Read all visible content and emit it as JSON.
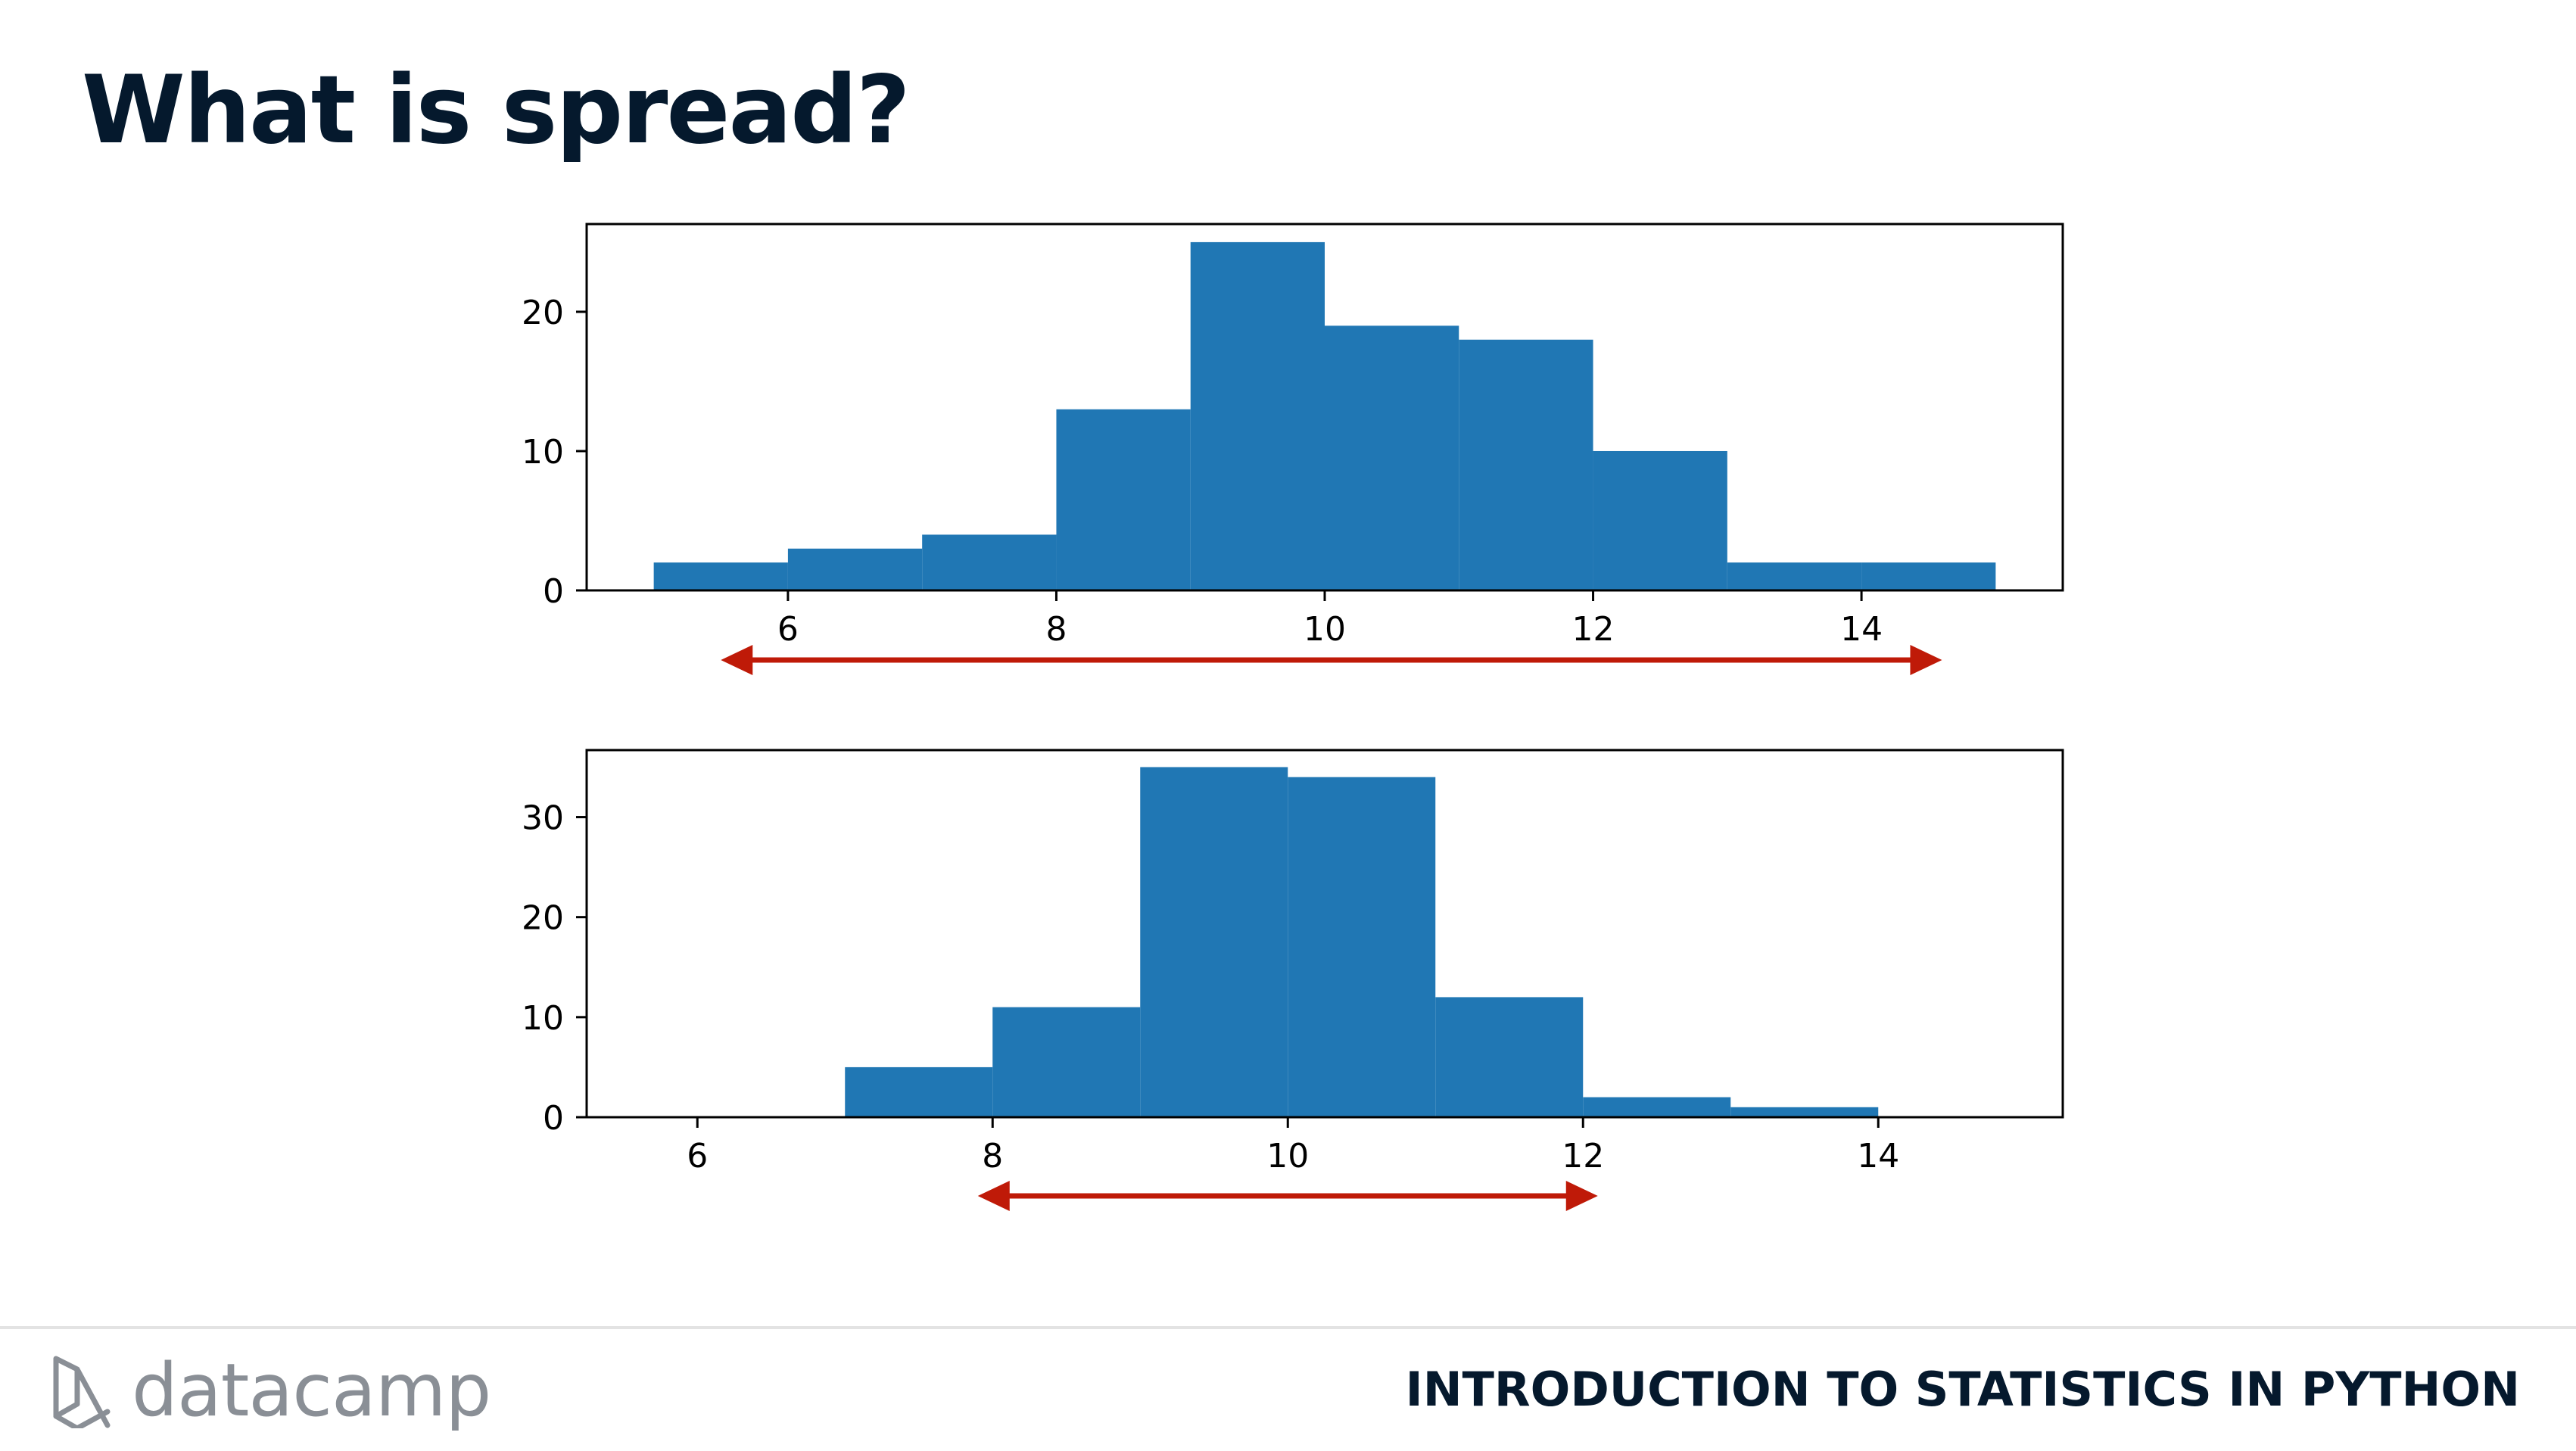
{
  "title": "What is spread?",
  "footer": {
    "logo_text": "datacamp",
    "course_name": "INTRODUCTION TO STATISTICS IN PYTHON"
  },
  "colors": {
    "bar": "#2077b4",
    "arrow": "#bf1a08",
    "title": "#05192d",
    "logo": "#8a8f96"
  },
  "chart_data": [
    {
      "type": "bar",
      "title": "",
      "xlabel": "",
      "ylabel": "",
      "bins": [
        {
          "x0": 5,
          "x1": 6,
          "count": 2
        },
        {
          "x0": 6,
          "x1": 7,
          "count": 3
        },
        {
          "x0": 7,
          "x1": 8,
          "count": 4
        },
        {
          "x0": 8,
          "x1": 9,
          "count": 13
        },
        {
          "x0": 9,
          "x1": 10,
          "count": 25
        },
        {
          "x0": 10,
          "x1": 11,
          "count": 19
        },
        {
          "x0": 11,
          "x1": 12,
          "count": 18
        },
        {
          "x0": 12,
          "x1": 13,
          "count": 10
        },
        {
          "x0": 13,
          "x1": 14,
          "count": 2
        },
        {
          "x0": 14,
          "x1": 15,
          "count": 2
        }
      ],
      "xlim": [
        4.5,
        15.5
      ],
      "ylim": [
        0,
        26.3
      ],
      "xticks": [
        6,
        8,
        10,
        12,
        14
      ],
      "yticks": [
        0,
        10,
        20
      ],
      "spread_arrow": {
        "from": 5.5,
        "to": 14.6
      }
    },
    {
      "type": "bar",
      "title": "",
      "xlabel": "",
      "ylabel": "",
      "bins": [
        {
          "x0": 7,
          "x1": 8,
          "count": 5
        },
        {
          "x0": 8,
          "x1": 9,
          "count": 11
        },
        {
          "x0": 9,
          "x1": 10,
          "count": 35
        },
        {
          "x0": 10,
          "x1": 11,
          "count": 34
        },
        {
          "x0": 11,
          "x1": 12,
          "count": 12
        },
        {
          "x0": 12,
          "x1": 13,
          "count": 2
        },
        {
          "x0": 13,
          "x1": 14,
          "count": 1
        }
      ],
      "xlim": [
        5.25,
        15.25
      ],
      "ylim": [
        0,
        36.7
      ],
      "xticks": [
        6,
        8,
        10,
        12,
        14
      ],
      "yticks": [
        0,
        10,
        20,
        30
      ],
      "spread_arrow": {
        "from": 7.9,
        "to": 12.1
      }
    }
  ]
}
